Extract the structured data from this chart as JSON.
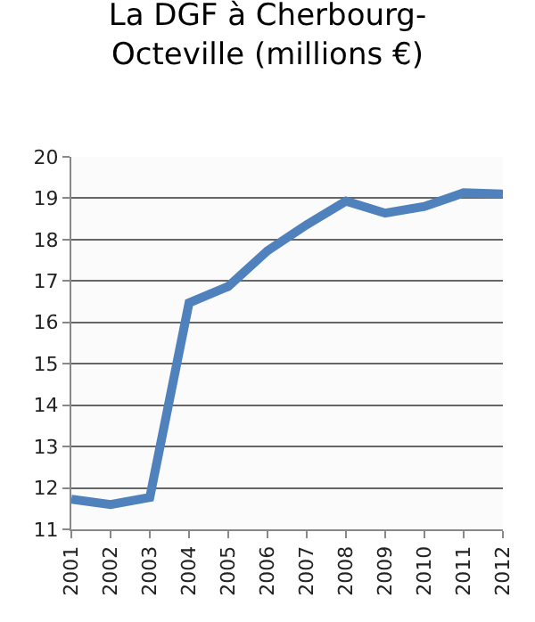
{
  "chart_data": {
    "type": "line",
    "title": "La DGF à Cherbourg-\nOcteville (millions €)",
    "categories": [
      "2001",
      "2002",
      "2003",
      "2004",
      "2005",
      "2006",
      "2007",
      "2008",
      "2009",
      "2010",
      "2011",
      "2012"
    ],
    "series": [
      {
        "color": "#4f81bd",
        "values": [
          11.73,
          11.6,
          11.77,
          16.47,
          16.87,
          17.73,
          18.36,
          18.93,
          18.64,
          18.8,
          19.13,
          19.1
        ]
      }
    ],
    "ylim": [
      11,
      20
    ],
    "yticks": [
      11,
      12,
      13,
      14,
      15,
      16,
      17,
      18,
      19,
      20
    ],
    "grid": "y",
    "legend": false,
    "marker": "none",
    "line_style": "solid"
  }
}
